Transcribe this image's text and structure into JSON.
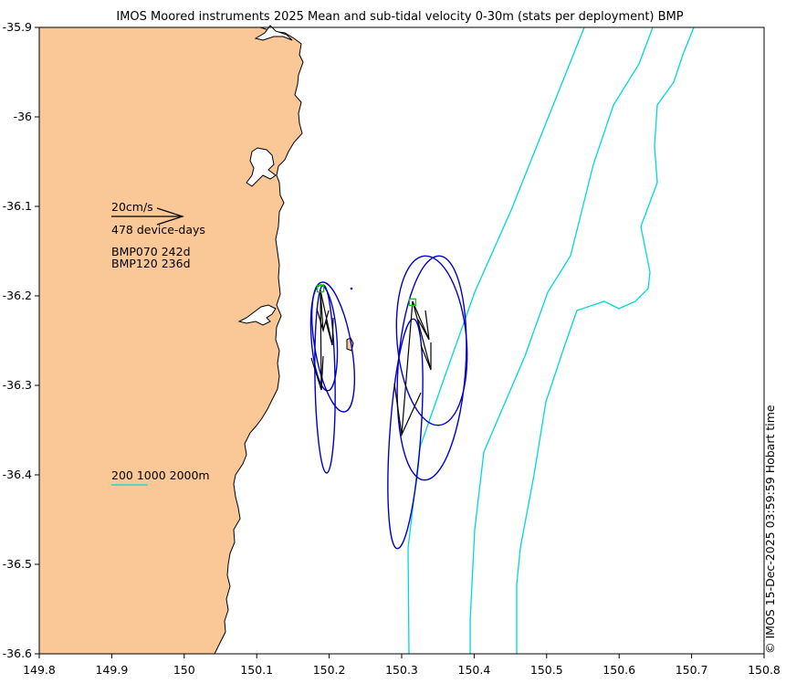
{
  "title": "IMOS Moored instruments 2025 Mean and sub-tidal velocity 0-30m (stats per deployment) BMP",
  "credit": "© IMOS 15-Dec-2025 03:59:59 Hobart time",
  "colors": {
    "land": "#fac896",
    "coast": "#000000",
    "isobath": "#00d8d8",
    "ellipse": "#0000c8",
    "arrow": "#000000",
    "mooring": "#00cc00"
  },
  "legend": {
    "scale_label": "20cm/s",
    "days_label": "478 device-days",
    "deployments": [
      "BMP070 242d",
      "BMP120 236d"
    ],
    "isobath_label": "200 1000 2000m"
  },
  "axes": {
    "lon_range": [
      149.8,
      150.8
    ],
    "lat_range": [
      -36.6,
      -35.9
    ],
    "lon_ticks": [
      "149.8",
      "149.9",
      "150",
      "150.1",
      "150.2",
      "150.3",
      "150.4",
      "150.5",
      "150.6",
      "150.7",
      "150.8"
    ],
    "lat_ticks": [
      "-35.9",
      "-36",
      "-36.1",
      "-36.2",
      "-36.3",
      "-36.4",
      "-36.5",
      "-36.6"
    ]
  },
  "moorings": [
    {
      "name": "BMP070",
      "lon": 150.188,
      "lat": -36.192
    },
    {
      "name": "BMP120",
      "lon": 150.315,
      "lat": -36.207
    }
  ]
}
